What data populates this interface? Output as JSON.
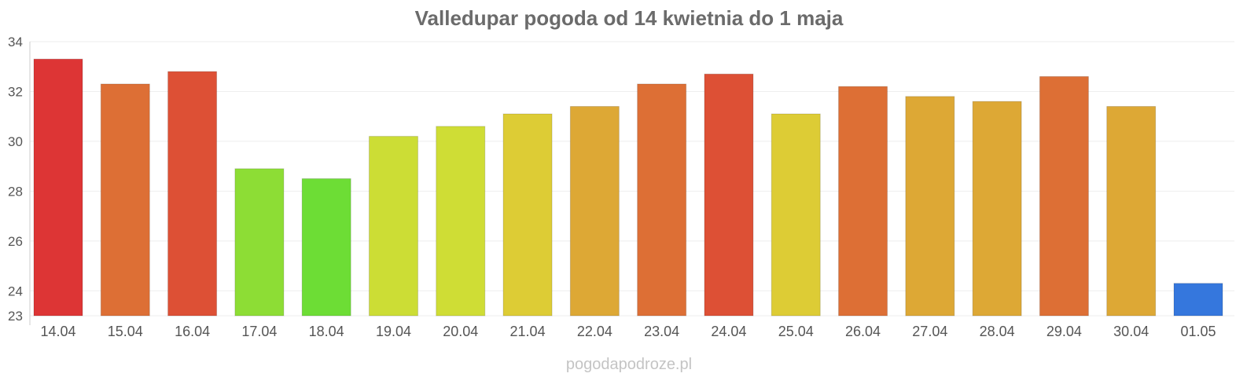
{
  "chart_data": {
    "type": "bar",
    "title": "Valledupar pogoda od 14 kwietnia do 1 maja",
    "xlabel": "",
    "ylabel": "",
    "ylim": [
      23,
      34
    ],
    "yticks": [
      23,
      24,
      26,
      28,
      30,
      32,
      34
    ],
    "grid": true,
    "categories": [
      "14.04",
      "15.04",
      "16.04",
      "17.04",
      "18.04",
      "19.04",
      "20.04",
      "21.04",
      "22.04",
      "23.04",
      "24.04",
      "25.04",
      "26.04",
      "27.04",
      "28.04",
      "29.04",
      "30.04",
      "01.05"
    ],
    "values": [
      33.3,
      32.3,
      32.8,
      28.9,
      28.5,
      30.2,
      30.6,
      31.1,
      31.4,
      32.3,
      32.7,
      31.1,
      32.2,
      31.8,
      31.6,
      32.6,
      31.4,
      24.3
    ],
    "colors": [
      "#dd3535",
      "#dd6f35",
      "#dd5035",
      "#8ddd35",
      "#6ddd35",
      "#ccdd35",
      "#cfdd35",
      "#ddcc35",
      "#dda835",
      "#dd6f35",
      "#dd5035",
      "#ddcc35",
      "#dd6f35",
      "#dda835",
      "#dda835",
      "#dd6f35",
      "#dda835",
      "#3577dd"
    ]
  },
  "watermark": "pogodapodroze.pl"
}
